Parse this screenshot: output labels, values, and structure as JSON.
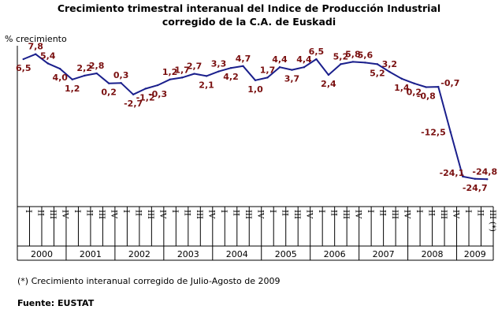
{
  "title_line1": "Crecimiento trimestral interanual del Indice de Producción Industrial",
  "title_line2": "corregido de la C.A. de Euskadi",
  "note": "(*) Crecimiento interanual corregido de Julio-Agosto de 2009",
  "source": "Fuente: EUSTAT",
  "line_color": "#1a1f8c",
  "label_color": "#7a1010",
  "chart_data": {
    "type": "line",
    "title": "Crecimiento trimestral interanual del Indice de Producción Industrial corregido de la C.A. de Euskadi",
    "ylabel": "% crecimiento",
    "xlabel": "",
    "ylim": [
      -27,
      10
    ],
    "grid": false,
    "years": [
      "2000",
      "2001",
      "2002",
      "2003",
      "2004",
      "2005",
      "2006",
      "2007",
      "2008",
      "2009"
    ],
    "quarters": [
      "I",
      "II",
      "III",
      "IV",
      "I",
      "II",
      "III",
      "IV",
      "I",
      "II",
      "III",
      "IV",
      "I",
      "II",
      "III",
      "IV",
      "I",
      "II",
      "III",
      "IV",
      "I",
      "II",
      "III",
      "IV",
      "I",
      "II",
      "III",
      "IV",
      "I",
      "II",
      "III",
      "IV",
      "I",
      "II",
      "III",
      "IV",
      "I",
      "II",
      "III (*)"
    ],
    "values": [
      6.5,
      7.8,
      5.4,
      4.0,
      1.2,
      2.2,
      2.8,
      0.2,
      0.3,
      -2.7,
      -1.2,
      -0.3,
      1.2,
      1.7,
      2.7,
      2.1,
      3.3,
      4.2,
      4.7,
      1.0,
      1.7,
      4.4,
      3.7,
      4.4,
      6.5,
      2.4,
      5.2,
      5.8,
      5.6,
      5.2,
      3.2,
      1.4,
      0.2,
      -0.8,
      -0.7,
      -12.5,
      -24.1,
      -24.7,
      -24.8
    ],
    "labels": [
      "6,5",
      "7,8",
      "5,4",
      "4,0",
      "1,2",
      "2,2",
      "2,8",
      "0,2",
      "0,3",
      "-2,7",
      "-1,2",
      "-0,3",
      "1,2",
      "1,7",
      "2,7",
      "2,1",
      "3,3",
      "4,2",
      "4,7",
      "1,0",
      "1,7",
      "4,4",
      "3,7",
      "4,4",
      "6,5",
      "2,4",
      "5,2",
      "5,8",
      "5,6",
      "5,2",
      "3,2",
      "1,4",
      "0,2",
      "-0,8",
      "-0,7",
      "-12,5",
      "-24,1",
      "-24,7",
      "-24,8"
    ]
  }
}
